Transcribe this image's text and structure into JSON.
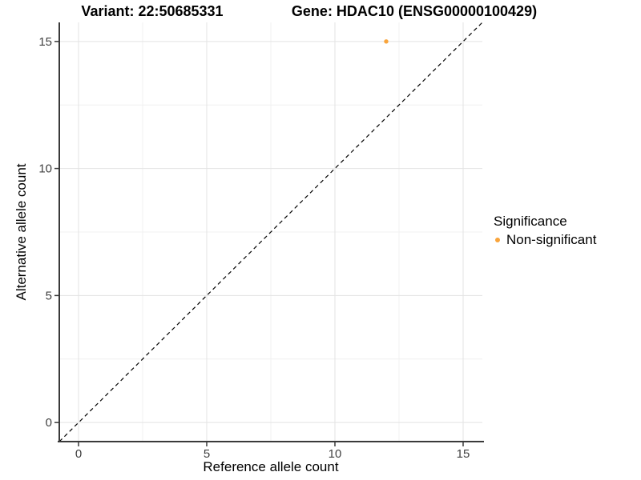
{
  "figure": {
    "background": "#FFFFFF"
  },
  "chart_data": {
    "type": "scatter",
    "titles": {
      "left": "Variant: 22:50685331",
      "right": "Gene: HDAC10 (ENSG00000100429)"
    },
    "xlabel": "Reference allele count",
    "ylabel": "Alternative allele count",
    "xlim": [
      -0.75,
      15.75
    ],
    "ylim": [
      -0.75,
      15.75
    ],
    "xticks": [
      0,
      5,
      10,
      15
    ],
    "yticks": [
      0,
      5,
      10,
      15
    ],
    "minor_xticks": [
      2.5,
      7.5,
      12.5
    ],
    "minor_yticks": [
      2.5,
      7.5,
      12.5
    ],
    "grid": "major+minor",
    "identity_line": {
      "slope": 1,
      "intercept": 0,
      "style": "dashed",
      "color": "#000000"
    },
    "series": [
      {
        "name": "Non-significant",
        "color": "#F9A43B",
        "points": [
          {
            "x": 12,
            "y": 15
          }
        ]
      }
    ],
    "legend": {
      "title": "Significance",
      "position": "right",
      "entries": [
        {
          "label": "Non-significant",
          "color": "#F9A43B",
          "marker": "dot"
        }
      ]
    }
  },
  "colors": {
    "axis": "#3a3a3a",
    "tick_label": "#404040",
    "grid_major": "#E3E3E3",
    "grid_minor": "#F0F0F0",
    "point": "#F9A43B",
    "identity_line": "#000000"
  }
}
